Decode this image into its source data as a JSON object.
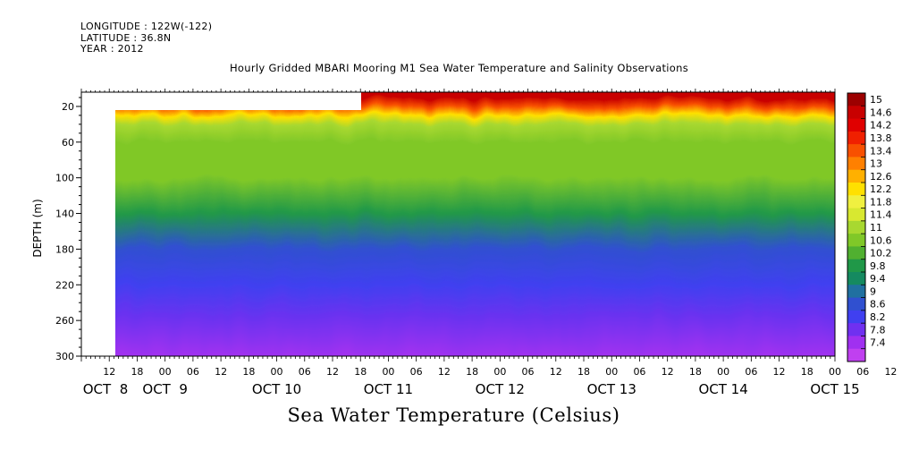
{
  "header": {
    "longitude": "LONGITUDE : 122W(-122)",
    "latitude": "LATITUDE : 36.8N",
    "year": "YEAR : 2012"
  },
  "chart_data": {
    "type": "heatmap",
    "title": "Hourly Gridded MBARI Mooring M1 Sea Water Temperature and Salinity Observations",
    "bottom_title": "Sea Water Temperature (Celsius)",
    "ylabel": "DEPTH (m)",
    "ylim": [
      300,
      4
    ],
    "y_ticks": [
      20,
      60,
      100,
      140,
      180,
      220,
      260,
      300
    ],
    "x_hour_labels": [
      "12",
      "18",
      "00",
      "06",
      "12",
      "18",
      "00",
      "06",
      "12",
      "18",
      "00",
      "06",
      "12",
      "18",
      "00",
      "06",
      "12",
      "18",
      "00",
      "06",
      "12",
      "18",
      "00",
      "06",
      "12",
      "18",
      "00",
      "06",
      "12",
      "18",
      "00",
      "06"
    ],
    "x_day_labels": [
      "OCT  8",
      "OCT  9",
      "OCT 10",
      "OCT 11",
      "OCT 12",
      "OCT 13",
      "OCT 14",
      "OCT 15"
    ],
    "x_range_hours_from_oct8_00": [
      6,
      168
    ],
    "colorbar_levels": [
      "15",
      "14.6",
      "14.2",
      "13.8",
      "13.4",
      "13",
      "12.6",
      "12.2",
      "11.8",
      "11.4",
      "11",
      "10.6",
      "10.2",
      "9.8",
      "9.4",
      "9",
      "8.6",
      "8.2",
      "7.8",
      "7.4"
    ],
    "colorbar_colors": [
      "#9c0000",
      "#c80000",
      "#e00000",
      "#f02000",
      "#f85000",
      "#ff8000",
      "#ffb000",
      "#ffe000",
      "#f0f040",
      "#d8e830",
      "#a8d830",
      "#80c828",
      "#50b030",
      "#209848",
      "#158a60",
      "#2070a0",
      "#3050d0",
      "#4040f0",
      "#7030f0",
      "#a030f0",
      "#c040f0"
    ],
    "no_data_regions": [
      {
        "x_from": "OCT 8 06",
        "x_to": "OCT 8 18",
        "depth_from": 4,
        "depth_to": 300
      },
      {
        "x_from": "OCT 8 18",
        "x_to": "OCT 11 02",
        "depth_from": 4,
        "depth_to": 20
      }
    ],
    "profile_summary": [
      {
        "depth": 10,
        "temperature": 14.8
      },
      {
        "depth": 20,
        "temperature": 13.6
      },
      {
        "depth": 30,
        "temperature": 12.2
      },
      {
        "depth": 40,
        "temperature": 11.2
      },
      {
        "depth": 60,
        "temperature": 10.8
      },
      {
        "depth": 100,
        "temperature": 10.6
      },
      {
        "depth": 140,
        "temperature": 9.9
      },
      {
        "depth": 180,
        "temperature": 8.9
      },
      {
        "depth": 220,
        "temperature": 8.4
      },
      {
        "depth": 260,
        "temperature": 8.0
      },
      {
        "depth": 300,
        "temperature": 7.6
      }
    ]
  }
}
